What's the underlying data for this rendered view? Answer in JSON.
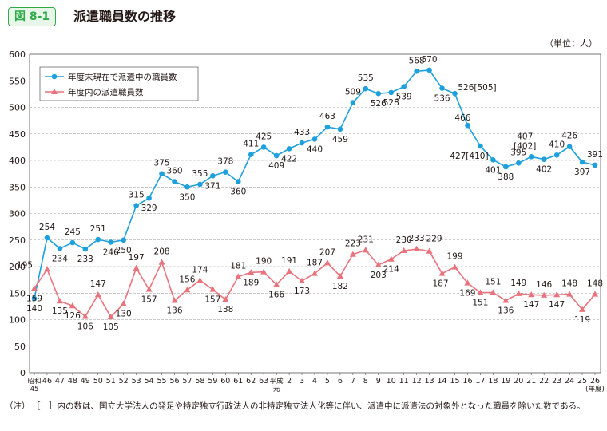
{
  "header": {
    "figure_label": "図 8-1",
    "title": "派遣職員数の推移",
    "unit": "（単位：人）"
  },
  "chart_data": {
    "type": "line",
    "title": "派遣職員数の推移",
    "xlabel": "(年度)",
    "ylabel": "",
    "ylim": [
      0,
      600
    ],
    "yticks": [
      0,
      50,
      100,
      150,
      200,
      250,
      300,
      350,
      400,
      450,
      500,
      550,
      600
    ],
    "grid": true,
    "legend_position": "top-left",
    "categories": [
      "昭和45",
      "46",
      "47",
      "48",
      "49",
      "50",
      "51",
      "52",
      "53",
      "54",
      "55",
      "56",
      "57",
      "58",
      "59",
      "60",
      "61",
      "62",
      "63",
      "平成元",
      "2",
      "3",
      "4",
      "5",
      "6",
      "7",
      "8",
      "9",
      "10",
      "11",
      "12",
      "13",
      "14",
      "15",
      "16",
      "17",
      "18",
      "19",
      "20",
      "21",
      "22",
      "23",
      "24",
      "25",
      "26"
    ],
    "category_labels": [
      [
        "昭和",
        "45"
      ],
      [
        "46"
      ],
      [
        "47"
      ],
      [
        "48"
      ],
      [
        "49"
      ],
      [
        "50"
      ],
      [
        "51"
      ],
      [
        "52"
      ],
      [
        "53"
      ],
      [
        "54"
      ],
      [
        "55"
      ],
      [
        "56"
      ],
      [
        "57"
      ],
      [
        "58"
      ],
      [
        "59"
      ],
      [
        "60"
      ],
      [
        "61"
      ],
      [
        "62"
      ],
      [
        "63"
      ],
      [
        "平成",
        "元"
      ],
      [
        "2"
      ],
      [
        "3"
      ],
      [
        "4"
      ],
      [
        "5"
      ],
      [
        "6"
      ],
      [
        "7"
      ],
      [
        "8"
      ],
      [
        "9"
      ],
      [
        "10"
      ],
      [
        "11"
      ],
      [
        "12"
      ],
      [
        "13"
      ],
      [
        "14"
      ],
      [
        "15"
      ],
      [
        "16"
      ],
      [
        "17"
      ],
      [
        "18"
      ],
      [
        "19"
      ],
      [
        "20"
      ],
      [
        "21"
      ],
      [
        "22"
      ],
      [
        "23"
      ],
      [
        "24"
      ],
      [
        "25"
      ],
      [
        "26"
      ]
    ],
    "series": [
      {
        "name": "年度末現在で派遣中の職員数",
        "color": "#1ea0dc",
        "marker": "circle",
        "values": [
          140,
          254,
          234,
          245,
          233,
          251,
          246,
          250,
          315,
          329,
          375,
          360,
          350,
          355,
          371,
          378,
          360,
          411,
          425,
          409,
          422,
          433,
          440,
          463,
          459,
          509,
          535,
          526,
          528,
          539,
          568,
          570,
          536,
          526,
          466,
          427,
          401,
          388,
          395,
          407,
          402,
          410,
          426,
          397,
          391
        ],
        "labels": [
          "140",
          "254",
          "234",
          "245",
          "233",
          "251",
          "246",
          "250",
          "315",
          "329",
          "375",
          "360",
          "350",
          "355",
          "371",
          "378",
          "360",
          "411",
          "425",
          "409",
          "422",
          "433",
          "440",
          "463",
          "459",
          "509",
          "535",
          "526",
          "528",
          "539",
          "568",
          "570",
          "536",
          "526[505]",
          "466",
          "427[410]",
          "401",
          "388",
          "395",
          "407\n[402]",
          "402",
          "410",
          "426",
          "397",
          "391"
        ]
      },
      {
        "name": "年度内の派遣職員数",
        "color": "#e9737c",
        "marker": "triangle",
        "values": [
          159,
          195,
          135,
          126,
          106,
          147,
          105,
          130,
          197,
          157,
          208,
          136,
          156,
          174,
          157,
          138,
          181,
          189,
          190,
          166,
          191,
          173,
          187,
          207,
          182,
          223,
          231,
          203,
          214,
          230,
          233,
          229,
          187,
          199,
          169,
          151,
          151,
          136,
          149,
          147,
          146,
          147,
          148,
          119,
          148
        ],
        "labels": [
          "159",
          "195",
          "135",
          "126",
          "106",
          "147",
          "105",
          "130",
          "197",
          "157",
          "208",
          "136",
          "156",
          "174",
          "157",
          "138",
          "181",
          "189",
          "190",
          "166",
          "191",
          "173",
          "187",
          "207",
          "182",
          "223",
          "231",
          "203",
          "214",
          "230",
          "233",
          "229",
          "187",
          "199",
          "169",
          "151",
          "151",
          "136",
          "149",
          "147",
          "146",
          "147",
          "148",
          "119",
          "148"
        ]
      }
    ],
    "x_unit_label": "(年度)"
  },
  "note": {
    "label": "（注）",
    "text": "［　］内の数は、国立大学法人の発足や特定独立行政法人の非特定独立法人化等に伴い、派遣中に派遣法の対象外となった職員を除いた数である。"
  }
}
